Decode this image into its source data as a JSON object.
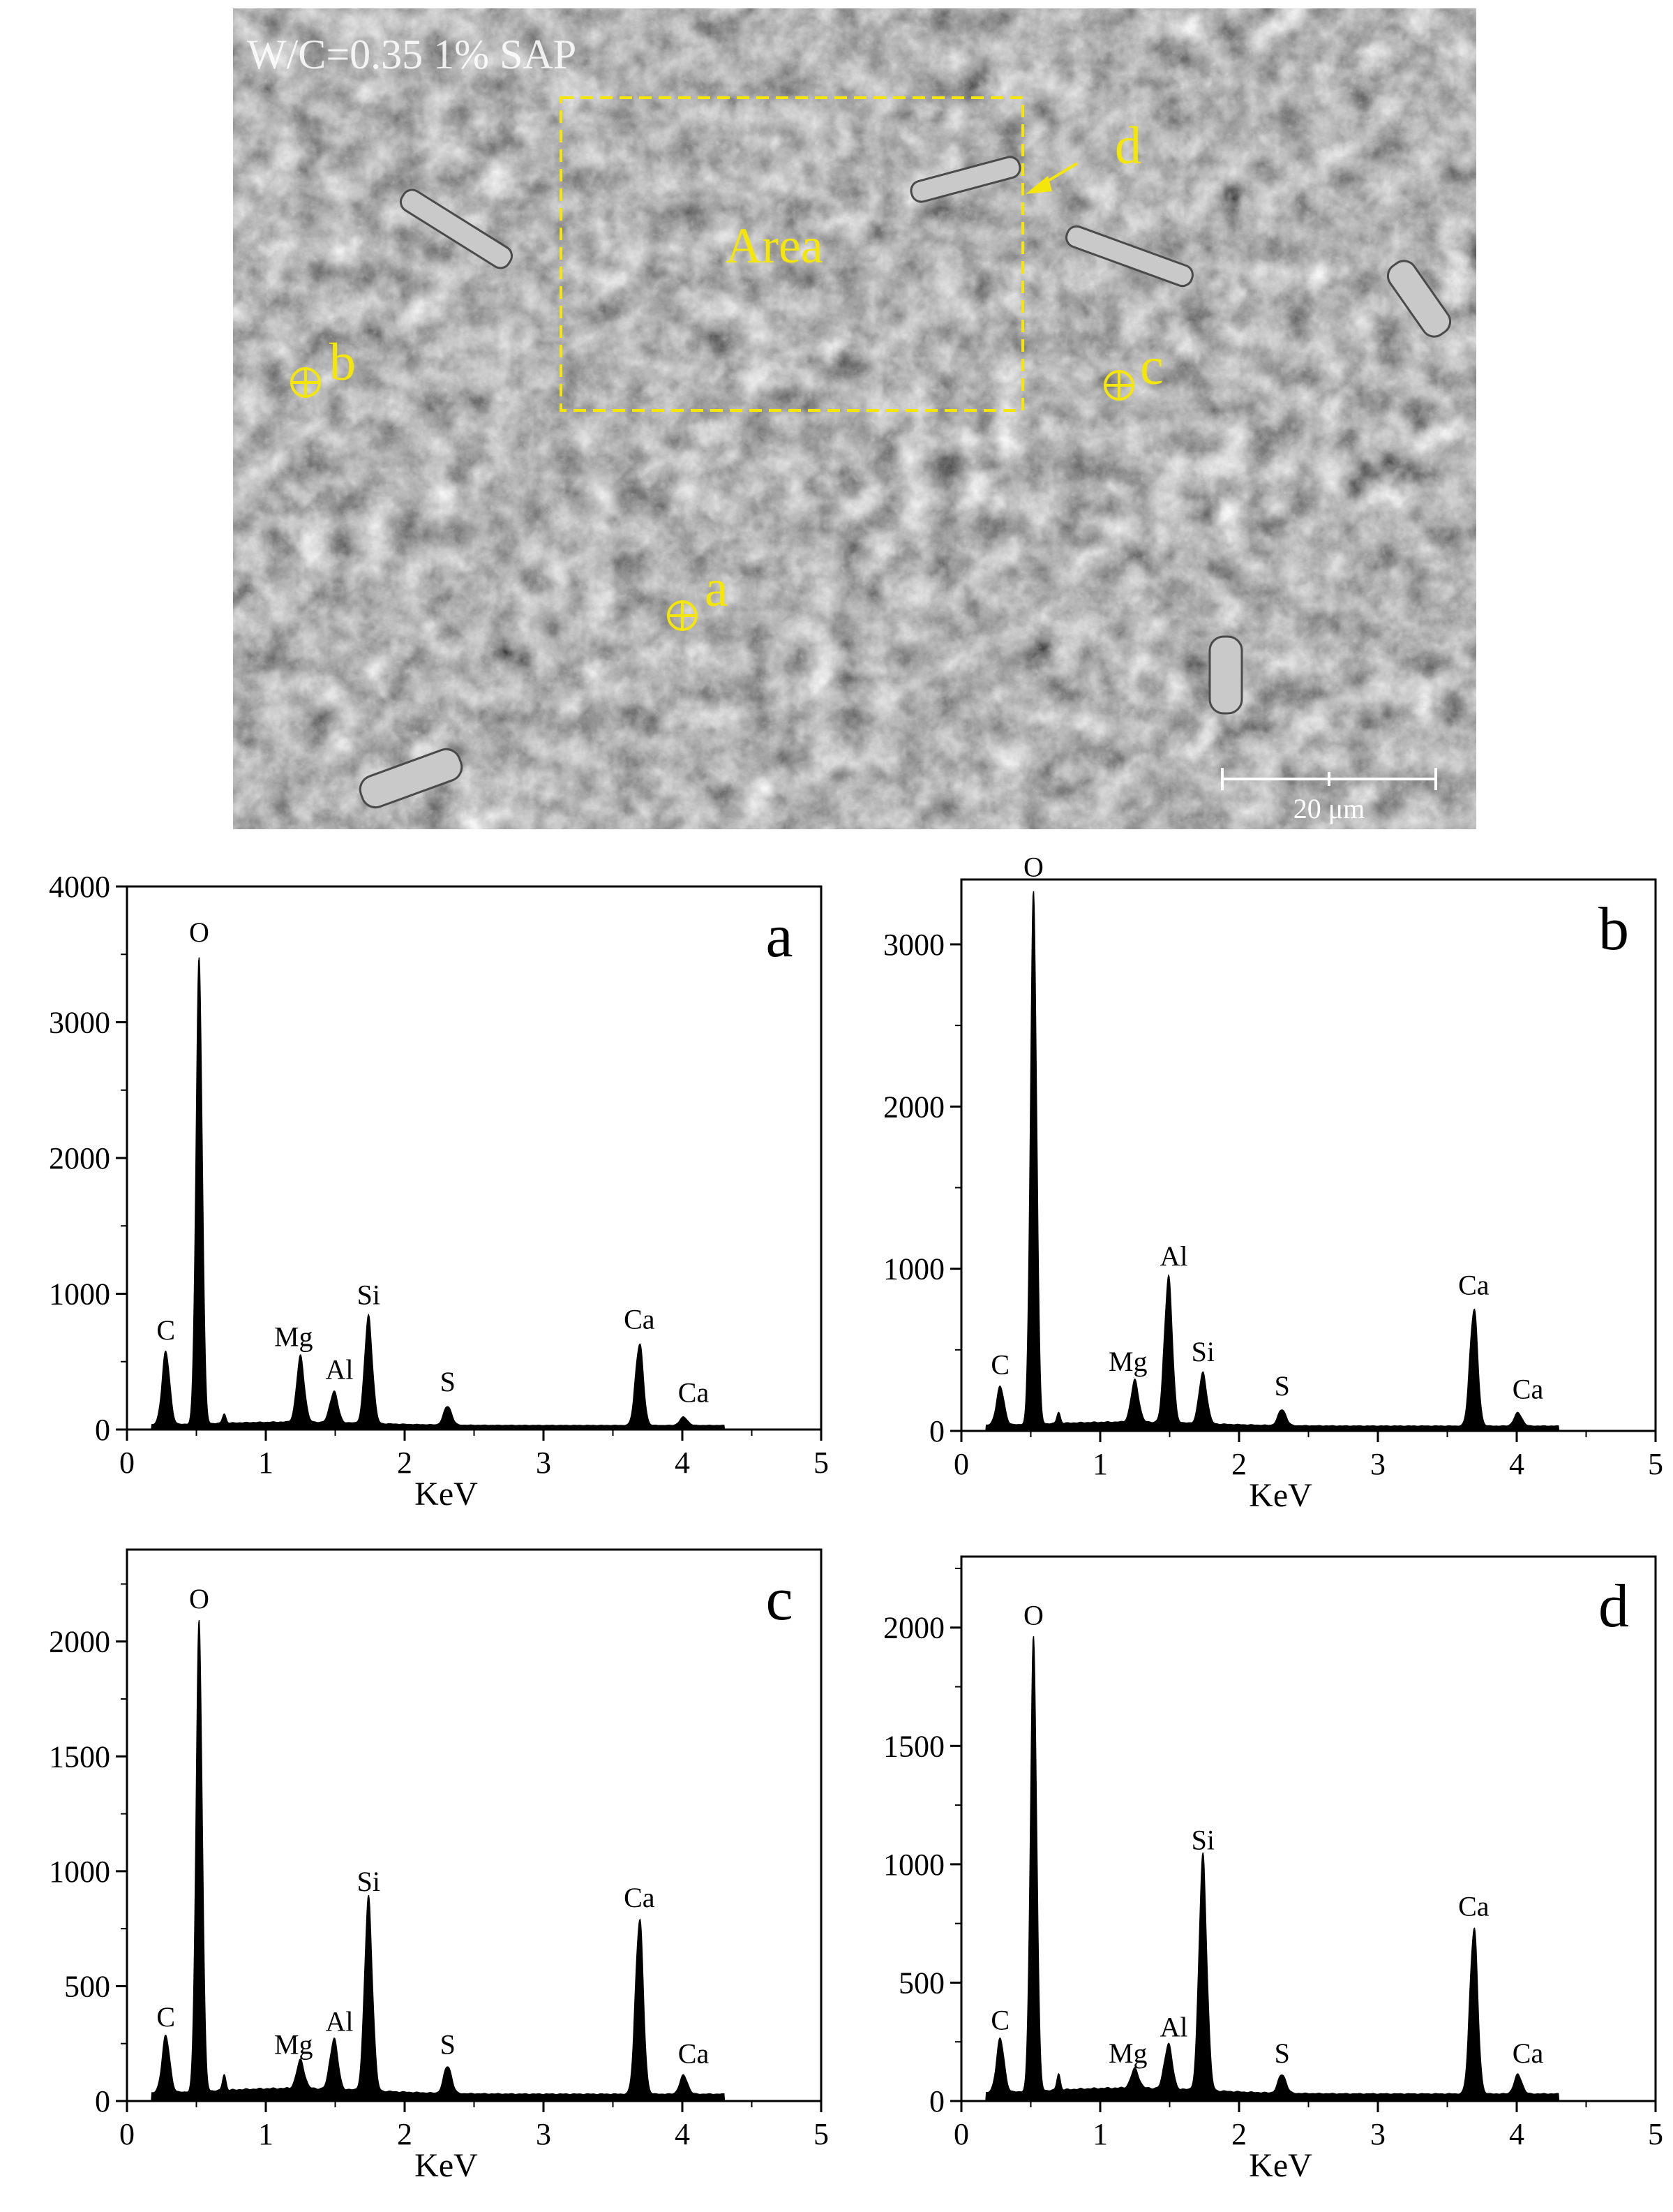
{
  "sem_image": {
    "caption": "W/C=0.35 1% SAP",
    "area_label": "Area",
    "points": [
      "a",
      "b",
      "c",
      "d"
    ],
    "scale_bar": "20 μm",
    "colors": {
      "annotation": "#f5e60a",
      "background": "#6e6e6e"
    }
  },
  "chart_data": [
    {
      "type": "area",
      "panel": "a",
      "xlabel": "KeV",
      "ylabel": "",
      "xlim": [
        0,
        5
      ],
      "ylim": [
        0,
        4000
      ],
      "xticks": [
        0,
        1,
        2,
        3,
        4,
        5
      ],
      "yticks": [
        0,
        1000,
        2000,
        3000,
        4000
      ],
      "peaks": [
        {
          "element": "C",
          "energy": 0.28,
          "counts": 520
        },
        {
          "element": "O",
          "energy": 0.52,
          "counts": 3450
        },
        {
          "element": "Mg",
          "energy": 1.25,
          "counts": 470
        },
        {
          "element": "Al",
          "energy": 1.49,
          "counts": 230
        },
        {
          "element": "Si",
          "energy": 1.74,
          "counts": 780
        },
        {
          "element": "S",
          "energy": 2.31,
          "counts": 140
        },
        {
          "element": "Ca",
          "energy": 3.69,
          "counts": 600
        },
        {
          "element": "Ca",
          "energy": 4.01,
          "counts": 60
        }
      ]
    },
    {
      "type": "area",
      "panel": "b",
      "xlabel": "KeV",
      "ylabel": "",
      "xlim": [
        0,
        5
      ],
      "ylim": [
        0,
        3400
      ],
      "xticks": [
        0,
        1,
        2,
        3,
        4,
        5
      ],
      "yticks": [
        0,
        1000,
        2000,
        3000
      ],
      "peaks": [
        {
          "element": "C",
          "energy": 0.28,
          "counts": 230
        },
        {
          "element": "O",
          "energy": 0.52,
          "counts": 3300
        },
        {
          "element": "Mg",
          "energy": 1.25,
          "counts": 250
        },
        {
          "element": "Al",
          "energy": 1.49,
          "counts": 900
        },
        {
          "element": "Si",
          "energy": 1.74,
          "counts": 310
        },
        {
          "element": "S",
          "energy": 2.31,
          "counts": 100
        },
        {
          "element": "Ca",
          "energy": 3.69,
          "counts": 720
        },
        {
          "element": "Ca",
          "energy": 4.01,
          "counts": 80
        }
      ]
    },
    {
      "type": "area",
      "panel": "c",
      "xlabel": "KeV",
      "ylabel": "",
      "xlim": [
        0,
        5
      ],
      "ylim": [
        0,
        2400
      ],
      "xticks": [
        0,
        1,
        2,
        3,
        4,
        5
      ],
      "yticks": [
        0,
        500,
        1000,
        1500,
        2000
      ],
      "peaks": [
        {
          "element": "C",
          "energy": 0.28,
          "counts": 240
        },
        {
          "element": "O",
          "energy": 0.52,
          "counts": 2060
        },
        {
          "element": "Mg",
          "energy": 1.25,
          "counts": 120
        },
        {
          "element": "Al",
          "energy": 1.49,
          "counts": 220
        },
        {
          "element": "Si",
          "energy": 1.74,
          "counts": 830
        },
        {
          "element": "S",
          "energy": 2.31,
          "counts": 120
        },
        {
          "element": "Ca",
          "energy": 3.69,
          "counts": 760
        },
        {
          "element": "Ca",
          "energy": 4.01,
          "counts": 80
        }
      ]
    },
    {
      "type": "area",
      "panel": "d",
      "xlabel": "KeV",
      "ylabel": "",
      "xlim": [
        0,
        5
      ],
      "ylim": [
        0,
        2300
      ],
      "xticks": [
        0,
        1,
        2,
        3,
        4,
        5
      ],
      "yticks": [
        0,
        500,
        1000,
        1500,
        2000
      ],
      "peaks": [
        {
          "element": "C",
          "energy": 0.28,
          "counts": 220
        },
        {
          "element": "O",
          "energy": 0.52,
          "counts": 1930
        },
        {
          "element": "Mg",
          "energy": 1.25,
          "counts": 80
        },
        {
          "element": "Al",
          "energy": 1.49,
          "counts": 190
        },
        {
          "element": "Si",
          "energy": 1.74,
          "counts": 980
        },
        {
          "element": "S",
          "energy": 2.31,
          "counts": 80
        },
        {
          "element": "Ca",
          "energy": 3.69,
          "counts": 700
        },
        {
          "element": "Ca",
          "energy": 4.01,
          "counts": 80
        }
      ]
    }
  ]
}
